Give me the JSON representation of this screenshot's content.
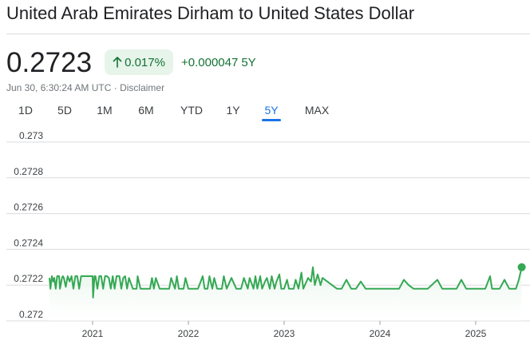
{
  "header": {
    "title": "United Arab Emirates Dirham to United States Dollar",
    "price": "0.2723",
    "change_percent": "0.017%",
    "change_abs": "+0.000047",
    "change_period": "5Y",
    "timestamp": "Jun 30, 6:30:24 AM UTC · ",
    "disclaimer": "Disclaimer"
  },
  "tabs": [
    {
      "label": "1D",
      "active": false
    },
    {
      "label": "5D",
      "active": false
    },
    {
      "label": "1M",
      "active": false
    },
    {
      "label": "6M",
      "active": false
    },
    {
      "label": "YTD",
      "active": false
    },
    {
      "label": "1Y",
      "active": false
    },
    {
      "label": "5Y",
      "active": true
    },
    {
      "label": "MAX",
      "active": false
    }
  ],
  "colors": {
    "line": "#34a853",
    "fill": "#e6f4ea",
    "positive_text": "#137333",
    "active_tab": "#1a73e8",
    "grid": "#dadce0"
  },
  "chart_data": {
    "type": "area",
    "title": "",
    "xlabel": "",
    "ylabel": "",
    "ylim": [
      0.272,
      0.273
    ],
    "xlim": [
      2020.55,
      2025.5
    ],
    "yticks": [
      "0.273",
      "0.2728",
      "0.2726",
      "0.2724",
      "0.2722",
      "0.272"
    ],
    "xticks": [
      "2021",
      "2022",
      "2023",
      "2024",
      "2025"
    ],
    "grid": true,
    "series": [
      {
        "name": "",
        "x": [
          2020.55,
          2020.56,
          2020.575,
          2020.59,
          2020.6,
          2020.615,
          2020.63,
          2020.65,
          2020.66,
          2020.68,
          2020.69,
          2020.7,
          2020.72,
          2020.74,
          2020.76,
          2020.78,
          2020.8,
          2020.82,
          2020.84,
          2020.86,
          2020.88,
          2020.9,
          2020.92,
          2020.94,
          2020.96,
          2020.98,
          2020.99,
          2021.0,
          2021.005,
          2021.02,
          2021.03,
          2021.05,
          2021.07,
          2021.09,
          2021.11,
          2021.13,
          2021.15,
          2021.17,
          2021.19,
          2021.21,
          2021.23,
          2021.25,
          2021.28,
          2021.3,
          2021.32,
          2021.34,
          2021.36,
          2021.38,
          2021.42,
          2021.46,
          2021.47,
          2021.5,
          2021.55,
          2021.6,
          2021.62,
          2021.64,
          2021.66,
          2021.7,
          2021.75,
          2021.8,
          2021.82,
          2021.86,
          2021.88,
          2021.9,
          2021.95,
          2021.97,
          2022.0,
          2022.05,
          2022.1,
          2022.15,
          2022.17,
          2022.2,
          2022.22,
          2022.25,
          2022.27,
          2022.3,
          2022.35,
          2022.37,
          2022.4,
          2022.45,
          2022.5,
          2022.55,
          2022.58,
          2022.62,
          2022.64,
          2022.68,
          2022.7,
          2022.72,
          2022.75,
          2022.77,
          2022.8,
          2022.82,
          2022.85,
          2022.87,
          2022.9,
          2022.92,
          2022.95,
          2022.97,
          2023.0,
          2023.03,
          2023.05,
          2023.1,
          2023.12,
          2023.15,
          2023.18,
          2023.2,
          2023.25,
          2023.28,
          2023.3,
          2023.32,
          2023.35,
          2023.38,
          2023.4,
          2023.45,
          2023.5,
          2023.55,
          2023.6,
          2023.65,
          2023.7,
          2023.75,
          2023.8,
          2023.85,
          2023.9,
          2023.95,
          2024.0,
          2024.1,
          2024.2,
          2024.25,
          2024.3,
          2024.35,
          2024.4,
          2024.5,
          2024.6,
          2024.65,
          2024.7,
          2024.8,
          2024.85,
          2024.9,
          2024.95,
          2025.0,
          2025.1,
          2025.15,
          2025.17,
          2025.2,
          2025.25,
          2025.3,
          2025.35,
          2025.38,
          2025.42,
          2025.45,
          2025.48
        ],
        "values": [
          0.27224,
          0.27218,
          0.27225,
          0.27222,
          0.27224,
          0.27218,
          0.27225,
          0.27225,
          0.27218,
          0.27224,
          0.27225,
          0.27224,
          0.27219,
          0.27225,
          0.27222,
          0.27225,
          0.27218,
          0.27225,
          0.27225,
          0.27218,
          0.27225,
          0.27225,
          0.27225,
          0.27225,
          0.27225,
          0.27225,
          0.27225,
          0.27225,
          0.27213,
          0.27225,
          0.27225,
          0.27218,
          0.27225,
          0.27225,
          0.27218,
          0.27225,
          0.27225,
          0.27224,
          0.27218,
          0.27225,
          0.27218,
          0.27225,
          0.27225,
          0.27218,
          0.27224,
          0.27225,
          0.27218,
          0.27224,
          0.27218,
          0.27218,
          0.27225,
          0.27218,
          0.27218,
          0.27218,
          0.27224,
          0.27218,
          0.27224,
          0.27218,
          0.27218,
          0.27218,
          0.27224,
          0.27218,
          0.27225,
          0.27218,
          0.27218,
          0.27224,
          0.27218,
          0.27218,
          0.27218,
          0.27225,
          0.27218,
          0.27218,
          0.27225,
          0.27218,
          0.27224,
          0.27218,
          0.27218,
          0.27225,
          0.27218,
          0.27224,
          0.27218,
          0.27218,
          0.27224,
          0.27218,
          0.27224,
          0.27218,
          0.27225,
          0.27218,
          0.27225,
          0.27218,
          0.27222,
          0.27224,
          0.27218,
          0.27225,
          0.27218,
          0.27222,
          0.27226,
          0.27218,
          0.27218,
          0.27223,
          0.27218,
          0.27218,
          0.27223,
          0.27218,
          0.27227,
          0.27218,
          0.27224,
          0.27222,
          0.2723,
          0.2722,
          0.27226,
          0.2722,
          0.27224,
          0.27222,
          0.2722,
          0.27218,
          0.27218,
          0.27223,
          0.27218,
          0.27218,
          0.27222,
          0.27218,
          0.27218,
          0.27218,
          0.27218,
          0.27218,
          0.27218,
          0.27223,
          0.2722,
          0.27218,
          0.27218,
          0.27218,
          0.27223,
          0.27218,
          0.27218,
          0.27218,
          0.27223,
          0.27218,
          0.27218,
          0.27218,
          0.27218,
          0.27225,
          0.27218,
          0.27218,
          0.27218,
          0.27223,
          0.27218,
          0.27218,
          0.27218,
          0.27223,
          0.2723
        ]
      }
    ],
    "last_point": {
      "x": 2025.48,
      "y": 0.2723
    }
  }
}
